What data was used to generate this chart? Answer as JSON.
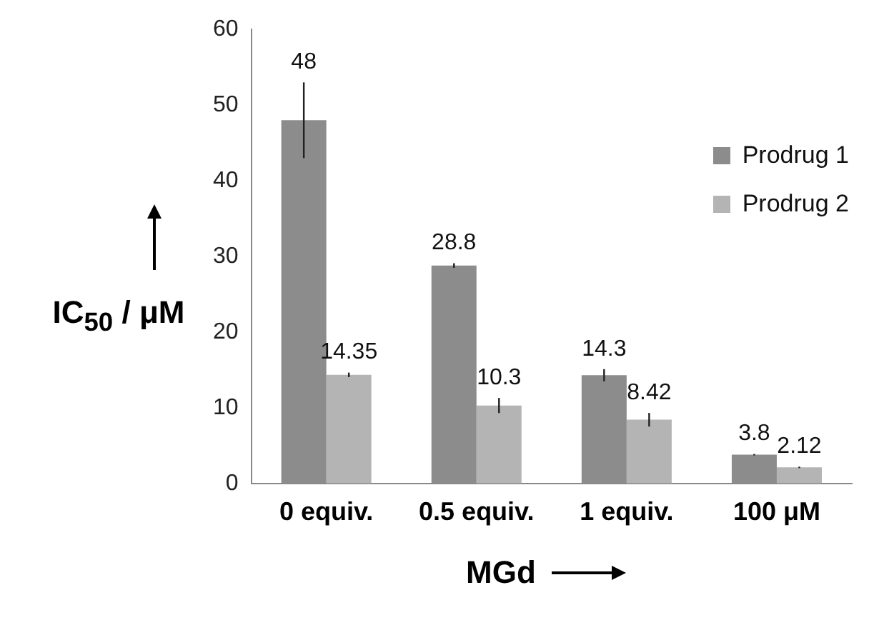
{
  "chart_data": {
    "type": "bar",
    "xlabel": "MGd",
    "ylabel": "IC$_{50}$ / μM",
    "categories": [
      "0 equiv.",
      "0.5 equiv.",
      "1 equiv.",
      "100 μM"
    ],
    "series": [
      {
        "name": "Prodrug 1",
        "color": "#8c8c8c",
        "values": [
          48,
          28.8,
          14.3,
          3.8
        ],
        "errors": [
          5,
          0.3,
          0.8,
          0.1
        ]
      },
      {
        "name": "Prodrug 2",
        "color": "#b4b4b4",
        "values": [
          14.35,
          10.3,
          8.42,
          2.12
        ],
        "errors": [
          0.3,
          1,
          0.9,
          0.1
        ]
      }
    ],
    "ylim": [
      0,
      60
    ],
    "yticks": [
      0,
      10,
      20,
      30,
      40,
      50,
      60
    ],
    "grid": false,
    "legend": "top right",
    "data_labels": true
  }
}
